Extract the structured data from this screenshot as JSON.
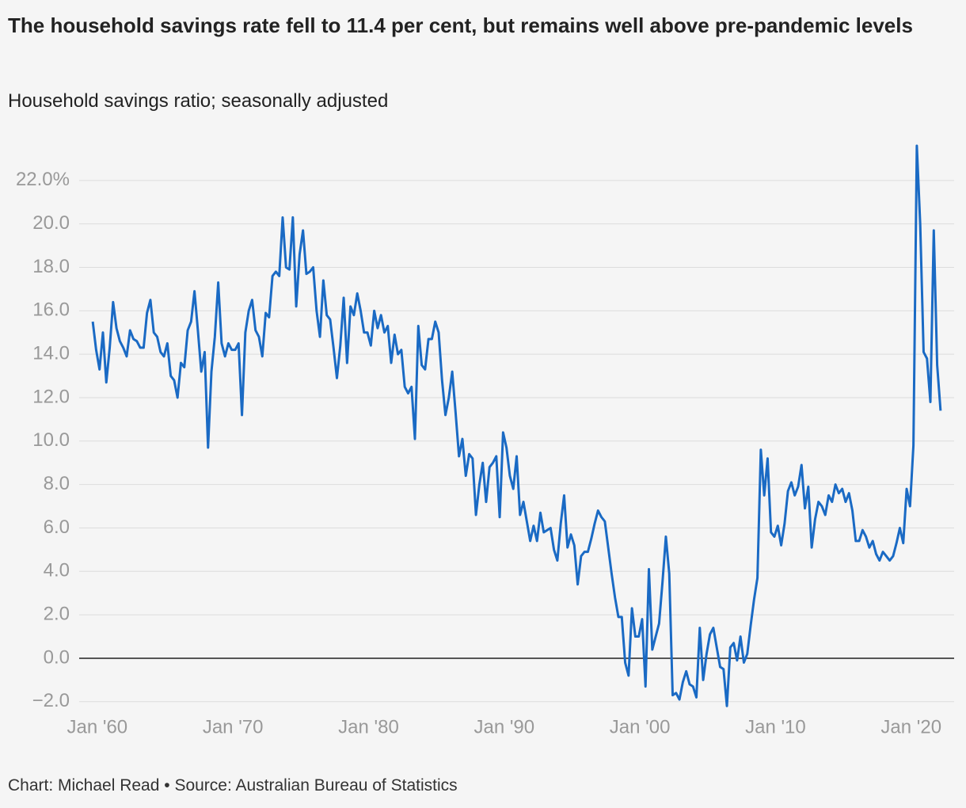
{
  "chart_data": {
    "type": "line",
    "title": "The household savings rate fell to 11.4 per cent, but remains well above pre-pandemic levels",
    "subtitle": "Household savings ratio; seasonally adjusted",
    "source": "Chart: Michael Read • Source: Australian Bureau of Statistics",
    "color": "#1a6ac4",
    "x": [
      "1959-09",
      "1959-12",
      "1960-03",
      "1960-06",
      "1960-09",
      "1960-12",
      "1961-03",
      "1961-06",
      "1961-09",
      "1961-12",
      "1962-03",
      "1962-06",
      "1962-09",
      "1962-12",
      "1963-03",
      "1963-06",
      "1963-09",
      "1963-12",
      "1964-03",
      "1964-06",
      "1964-09",
      "1964-12",
      "1965-03",
      "1965-06",
      "1965-09",
      "1965-12",
      "1966-03",
      "1966-06",
      "1966-09",
      "1966-12",
      "1967-03",
      "1967-06",
      "1967-09",
      "1967-12",
      "1968-03",
      "1968-06",
      "1968-09",
      "1968-12",
      "1969-03",
      "1969-06",
      "1969-09",
      "1969-12",
      "1970-03",
      "1970-06",
      "1970-09",
      "1970-12",
      "1971-03",
      "1971-06",
      "1971-09",
      "1971-12",
      "1972-03",
      "1972-06",
      "1972-09",
      "1972-12",
      "1973-03",
      "1973-06",
      "1973-09",
      "1973-12",
      "1974-03",
      "1974-06",
      "1974-09",
      "1974-12",
      "1975-03",
      "1975-06",
      "1975-09",
      "1975-12",
      "1976-03",
      "1976-06",
      "1976-09",
      "1976-12",
      "1977-03",
      "1977-06",
      "1977-09",
      "1977-12",
      "1978-03",
      "1978-06",
      "1978-09",
      "1978-12",
      "1979-03",
      "1979-06",
      "1979-09",
      "1979-12",
      "1980-03",
      "1980-06",
      "1980-09",
      "1980-12",
      "1981-03",
      "1981-06",
      "1981-09",
      "1981-12",
      "1982-03",
      "1982-06",
      "1982-09",
      "1982-12",
      "1983-03",
      "1983-06",
      "1983-09",
      "1983-12",
      "1984-03",
      "1984-06",
      "1984-09",
      "1984-12",
      "1985-03",
      "1985-06",
      "1985-09",
      "1985-12",
      "1986-03",
      "1986-06",
      "1986-09",
      "1986-12",
      "1987-03",
      "1987-06",
      "1987-09",
      "1987-12",
      "1988-03",
      "1988-06",
      "1988-09",
      "1988-12",
      "1989-03",
      "1989-06",
      "1989-09",
      "1989-12",
      "1990-03",
      "1990-06",
      "1990-09",
      "1990-12",
      "1991-03",
      "1991-06",
      "1991-09",
      "1991-12",
      "1992-03",
      "1992-06",
      "1992-09",
      "1992-12",
      "1993-03",
      "1993-06",
      "1993-09",
      "1993-12",
      "1994-03",
      "1994-06",
      "1994-09",
      "1994-12",
      "1995-03",
      "1995-06",
      "1995-09",
      "1995-12",
      "1996-03",
      "1996-06",
      "1996-09",
      "1996-12",
      "1997-03",
      "1997-06",
      "1997-09",
      "1997-12",
      "1998-03",
      "1998-06",
      "1998-09",
      "1998-12",
      "1999-03",
      "1999-06",
      "1999-09",
      "1999-12",
      "2000-03",
      "2000-06",
      "2000-09",
      "2000-12",
      "2001-03",
      "2001-06",
      "2001-09",
      "2001-12",
      "2002-03",
      "2002-06",
      "2002-09",
      "2002-12",
      "2003-03",
      "2003-06",
      "2003-09",
      "2003-12",
      "2004-03",
      "2004-06",
      "2004-09",
      "2004-12",
      "2005-03",
      "2005-06",
      "2005-09",
      "2005-12",
      "2006-03",
      "2006-06",
      "2006-09",
      "2006-12",
      "2007-03",
      "2007-06",
      "2007-09",
      "2007-12",
      "2008-03",
      "2008-06",
      "2008-09",
      "2008-12",
      "2009-03",
      "2009-06",
      "2009-09",
      "2009-12",
      "2010-03",
      "2010-06",
      "2010-09",
      "2010-12",
      "2011-03",
      "2011-06",
      "2011-09",
      "2011-12",
      "2012-03",
      "2012-06",
      "2012-09",
      "2012-12",
      "2013-03",
      "2013-06",
      "2013-09",
      "2013-12",
      "2014-03",
      "2014-06",
      "2014-09",
      "2014-12",
      "2015-03",
      "2015-06",
      "2015-09",
      "2015-12",
      "2016-03",
      "2016-06",
      "2016-09",
      "2016-12",
      "2017-03",
      "2017-06",
      "2017-09",
      "2017-12",
      "2018-03",
      "2018-06",
      "2018-09",
      "2018-12",
      "2019-03",
      "2019-06",
      "2019-09",
      "2019-12",
      "2020-03",
      "2020-06",
      "2020-09",
      "2020-12",
      "2021-03",
      "2021-06",
      "2021-09",
      "2021-12",
      "2022-03"
    ],
    "values": [
      15.5,
      14.2,
      13.3,
      15.0,
      12.7,
      14.3,
      16.4,
      15.2,
      14.6,
      14.3,
      13.9,
      15.1,
      14.7,
      14.6,
      14.3,
      14.3,
      15.9,
      16.5,
      15.0,
      14.8,
      14.1,
      13.9,
      14.5,
      13.0,
      12.8,
      12.0,
      13.6,
      13.4,
      15.1,
      15.5,
      16.9,
      15.1,
      13.2,
      14.1,
      9.7,
      13.2,
      14.8,
      17.3,
      14.5,
      13.9,
      14.5,
      14.2,
      14.2,
      14.5,
      11.2,
      15.0,
      16.0,
      16.5,
      15.1,
      14.8,
      13.9,
      15.9,
      15.7,
      17.6,
      17.8,
      17.6,
      20.3,
      18.0,
      17.9,
      20.3,
      16.2,
      18.6,
      19.7,
      17.7,
      17.8,
      18.0,
      16.0,
      14.8,
      17.4,
      15.8,
      15.6,
      14.3,
      12.9,
      14.4,
      16.6,
      13.6,
      16.2,
      15.8,
      16.8,
      16.0,
      15.0,
      15.0,
      14.4,
      16.0,
      15.2,
      15.8,
      15.0,
      15.3,
      13.6,
      14.9,
      14.0,
      14.2,
      12.5,
      12.2,
      12.5,
      10.1,
      15.3,
      13.5,
      13.3,
      14.7,
      14.7,
      15.5,
      15.0,
      12.8,
      11.2,
      12.0,
      13.2,
      11.3,
      9.3,
      10.1,
      8.4,
      9.4,
      9.2,
      6.6,
      8.0,
      9.0,
      7.2,
      8.8,
      9.0,
      9.3,
      6.5,
      10.4,
      9.7,
      8.4,
      7.8,
      9.3,
      6.6,
      7.2,
      6.3,
      5.4,
      6.1,
      5.4,
      6.7,
      5.8,
      5.9,
      6.0,
      5.0,
      4.5,
      6.2,
      7.5,
      5.1,
      5.7,
      5.2,
      3.4,
      4.7,
      4.9,
      4.9,
      5.5,
      6.2,
      6.8,
      6.5,
      6.3,
      5.1,
      3.9,
      2.8,
      1.9,
      1.9,
      -0.2,
      -0.8,
      2.3,
      1.0,
      1.0,
      1.8,
      -1.3,
      4.1,
      0.4,
      1.0,
      1.6,
      3.5,
      5.6,
      3.9,
      -1.7,
      -1.6,
      -1.9,
      -1.1,
      -0.6,
      -1.2,
      -1.3,
      -1.8,
      1.4,
      -1.0,
      0.2,
      1.1,
      1.4,
      0.5,
      -0.4,
      -0.5,
      -2.2,
      0.5,
      0.7,
      -0.1,
      1.0,
      -0.2,
      0.2,
      1.5,
      2.7,
      3.7,
      9.6,
      7.5,
      9.2,
      5.8,
      5.6,
      6.1,
      5.2,
      6.2,
      7.7,
      8.1,
      7.5,
      7.9,
      8.9,
      6.9,
      7.9,
      5.1,
      6.4,
      7.2,
      7.0,
      6.6,
      7.5,
      7.2,
      8.0,
      7.6,
      7.8,
      7.2,
      7.6,
      6.8,
      5.4,
      5.4,
      5.9,
      5.6,
      5.1,
      5.4,
      4.8,
      4.5,
      4.9,
      4.7,
      4.5,
      4.7,
      5.3,
      6.0,
      5.3,
      7.8,
      7.0,
      9.8,
      23.6,
      20.0,
      14.1,
      13.8,
      11.8,
      19.7,
      13.5,
      11.4
    ],
    "xlim": [
      "1958-09",
      "2023-03"
    ],
    "xticks": [
      {
        "value": "1960-01",
        "label": "Jan '60"
      },
      {
        "value": "1970-01",
        "label": "Jan '70"
      },
      {
        "value": "1980-01",
        "label": "Jan '80"
      },
      {
        "value": "1990-01",
        "label": "Jan '90"
      },
      {
        "value": "2000-01",
        "label": "Jan '00"
      },
      {
        "value": "2010-01",
        "label": "Jan '10"
      },
      {
        "value": "2020-01",
        "label": "Jan '20"
      }
    ],
    "ylim": [
      -2.5,
      24
    ],
    "yticks": [
      {
        "value": -2,
        "label": "−2.0"
      },
      {
        "value": 0,
        "label": "0.0"
      },
      {
        "value": 2,
        "label": "2.0"
      },
      {
        "value": 4,
        "label": "4.0"
      },
      {
        "value": 6,
        "label": "6.0"
      },
      {
        "value": 8,
        "label": "8.0"
      },
      {
        "value": 10,
        "label": "10.0"
      },
      {
        "value": 12,
        "label": "12.0"
      },
      {
        "value": 14,
        "label": "14.0"
      },
      {
        "value": 16,
        "label": "16.0"
      },
      {
        "value": 18,
        "label": "18.0"
      },
      {
        "value": 20,
        "label": "20.0"
      },
      {
        "value": 22,
        "label": "22.0%"
      }
    ],
    "grid": true
  }
}
